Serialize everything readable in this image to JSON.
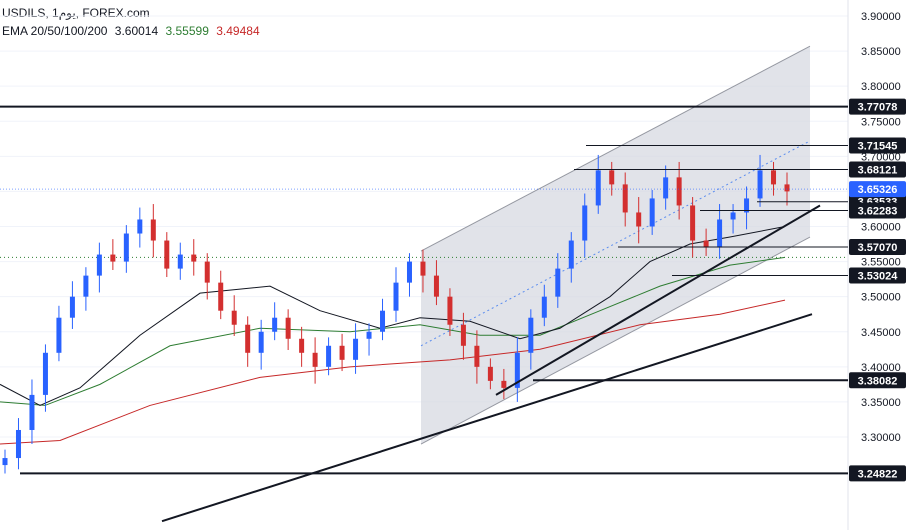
{
  "header": {
    "symbol_line": "USDILS, 1یوم, FOREX.com",
    "ema_label": "EMA 20/50/100/200",
    "ema_values": [
      "3.60014",
      "3.55599",
      "3.49484"
    ],
    "ema_colors": [
      "#131722",
      "#2e7d32",
      "#c62828"
    ]
  },
  "chart_data": {
    "type": "line",
    "title": "USDILS, 1یوم, FOREX.com",
    "ylim": [
      3.18,
      3.915
    ],
    "y_ticks": [
      "3.90000",
      "3.85000",
      "3.80000",
      "3.75000",
      "3.70000",
      "3.65000",
      "3.60000",
      "3.55000",
      "3.50000",
      "3.45000",
      "3.40000",
      "3.35000",
      "3.30000"
    ],
    "y_tick_values": [
      3.9,
      3.85,
      3.8,
      3.75,
      3.7,
      3.65,
      3.6,
      3.55,
      3.5,
      3.45,
      3.4,
      3.35,
      3.3
    ],
    "grid": true,
    "current_price": {
      "label": "3.65326",
      "value": 3.65326,
      "color": "#2962ff"
    },
    "levels": [
      {
        "label": "3.77078",
        "value": 3.77078
      },
      {
        "label": "3.71545",
        "value": 3.71545
      },
      {
        "label": "3.68121",
        "value": 3.68121
      },
      {
        "label": "3.63533",
        "value": 3.63533
      },
      {
        "label": "3.62283",
        "value": 3.62283
      },
      {
        "label": "3.57070",
        "value": 3.5707
      },
      {
        "label": "3.53024",
        "value": 3.53024
      },
      {
        "label": "3.38082",
        "value": 3.38082
      },
      {
        "label": "3.24822",
        "value": 3.24822
      }
    ],
    "series": [
      {
        "name": "EMA 20",
        "value": 3.60014,
        "color": "#131722"
      },
      {
        "name": "EMA 50",
        "value": 3.55599,
        "color": "#2e7d32"
      },
      {
        "name": "EMA 100",
        "value": 3.49484,
        "color": "#c62828"
      }
    ],
    "candle_closes": [
      3.27,
      3.31,
      3.36,
      3.42,
      3.47,
      3.5,
      3.53,
      3.56,
      3.55,
      3.59,
      3.61,
      3.58,
      3.54,
      3.56,
      3.55,
      3.52,
      3.48,
      3.46,
      3.42,
      3.45,
      3.47,
      3.44,
      3.42,
      3.4,
      3.43,
      3.41,
      3.44,
      3.45,
      3.48,
      3.52,
      3.55,
      3.53,
      3.5,
      3.46,
      3.43,
      3.4,
      3.38,
      3.37,
      3.42,
      3.47,
      3.5,
      3.54,
      3.58,
      3.63,
      3.68,
      3.66,
      3.62,
      3.6,
      3.64,
      3.67,
      3.63,
      3.58,
      3.57,
      3.61,
      3.62,
      3.64,
      3.68,
      3.66,
      3.65
    ]
  }
}
